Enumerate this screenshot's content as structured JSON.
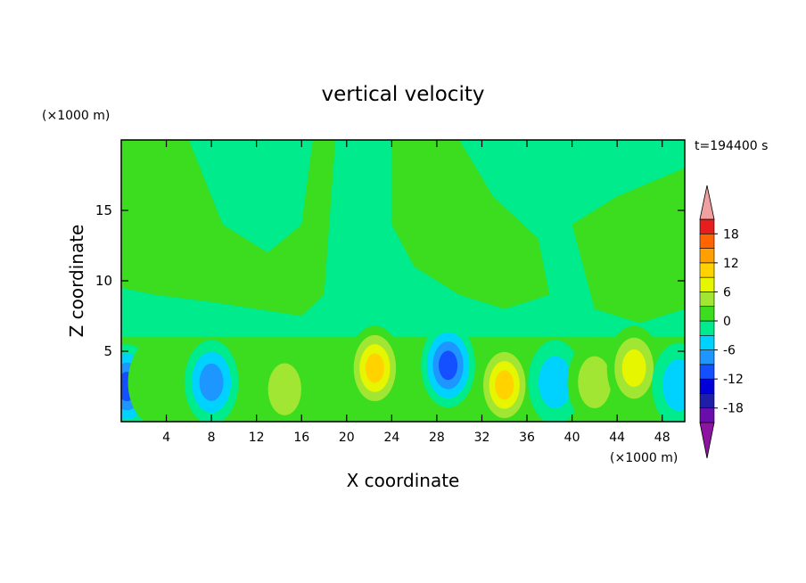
{
  "chart_data": {
    "type": "heatmap",
    "title": "vertical velocity",
    "xlabel": "X coordinate",
    "ylabel": "Z coordinate",
    "x_unit": "(×1000 m)",
    "y_unit": "(×1000 m)",
    "time_label": "t=194400 s",
    "xlim": [
      0,
      50
    ],
    "ylim": [
      0,
      20
    ],
    "x_ticks": [
      4,
      8,
      12,
      16,
      20,
      24,
      28,
      32,
      36,
      40,
      44,
      48
    ],
    "y_ticks": [
      5,
      10,
      15
    ],
    "grid": false,
    "colorbar": {
      "ticks": [
        18,
        12,
        6,
        0,
        -6,
        -12,
        -18
      ],
      "min": -21,
      "max": 21,
      "levels": [
        {
          "from": -21,
          "to": -18,
          "color": "#6a0dad"
        },
        {
          "from": -18,
          "to": -15,
          "color": "#1e1ea8"
        },
        {
          "from": -15,
          "to": -12,
          "color": "#0000d8"
        },
        {
          "from": -12,
          "to": -9,
          "color": "#1450ff"
        },
        {
          "from": -9,
          "to": -6,
          "color": "#1e96ff"
        },
        {
          "from": -6,
          "to": -3,
          "color": "#00d2ff"
        },
        {
          "from": -3,
          "to": 0,
          "color": "#00eb8c"
        },
        {
          "from": 0,
          "to": 3,
          "color": "#3cdc1e"
        },
        {
          "from": 3,
          "to": 6,
          "color": "#a0e632"
        },
        {
          "from": 6,
          "to": 9,
          "color": "#e6f500"
        },
        {
          "from": 9,
          "to": 12,
          "color": "#ffd200"
        },
        {
          "from": 12,
          "to": 15,
          "color": "#ffa000"
        },
        {
          "from": 15,
          "to": 18,
          "color": "#ff6400"
        },
        {
          "from": 18,
          "to": 21,
          "color": "#e61e1e"
        }
      ],
      "over_color": "#f0a0a0",
      "under_color": "#8c14a0"
    },
    "background_level_color": "#3cdc1e",
    "cells": [
      {
        "x": 0.5,
        "z": 2.5,
        "value": -14
      },
      {
        "x": 3.0,
        "z": 2.8,
        "value": 5
      },
      {
        "x": 8.0,
        "z": 2.8,
        "value": -9
      },
      {
        "x": 14.5,
        "z": 2.3,
        "value": 6
      },
      {
        "x": 22.5,
        "z": 3.8,
        "value": 14
      },
      {
        "x": 29.0,
        "z": 4.0,
        "value": -12
      },
      {
        "x": 34.0,
        "z": 2.6,
        "value": 13
      },
      {
        "x": 38.5,
        "z": 2.8,
        "value": -8
      },
      {
        "x": 42.0,
        "z": 2.8,
        "value": 6
      },
      {
        "x": 45.5,
        "z": 3.8,
        "value": 9
      },
      {
        "x": 49.5,
        "z": 2.6,
        "value": -8
      }
    ]
  }
}
